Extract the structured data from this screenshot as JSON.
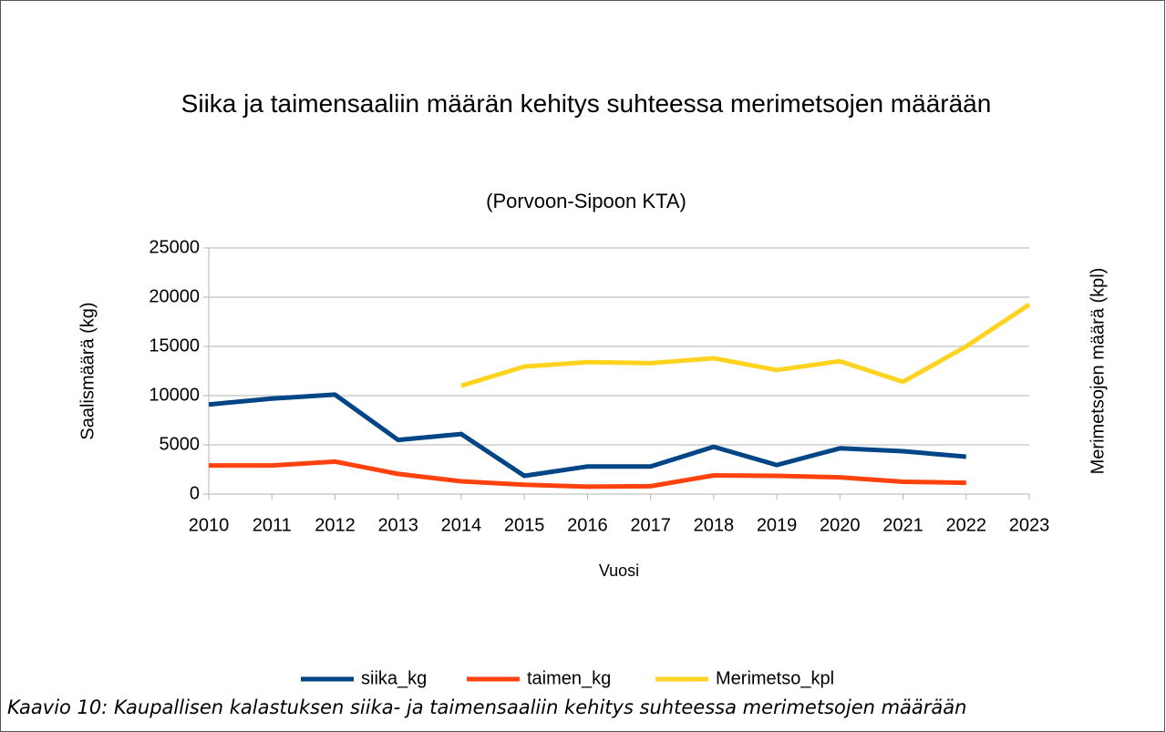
{
  "chart_data": {
    "type": "line",
    "title": "Siika ja taimensaaliin määrän kehitys suhteessa merimetsojen määrään",
    "subtitle": "(Porvoon-Sipoon KTA)",
    "xlabel": "Vuosi",
    "ylabel": "Saalismäärä (kg)",
    "y2label": "Merimetsojen määrä (kpl)",
    "categories": [
      "2010",
      "2011",
      "2012",
      "2013",
      "2014",
      "2015",
      "2016",
      "2017",
      "2018",
      "2019",
      "2020",
      "2021",
      "2022",
      "2023"
    ],
    "series": [
      {
        "name": "siika_kg",
        "color": "#004586",
        "values": [
          9100,
          9700,
          10100,
          5500,
          6100,
          1850,
          2800,
          2800,
          4800,
          2950,
          4650,
          4350,
          3800,
          null
        ]
      },
      {
        "name": "taimen_kg",
        "color": "#ff420e",
        "values": [
          2900,
          2900,
          3300,
          2050,
          1300,
          950,
          750,
          800,
          1900,
          1850,
          1700,
          1250,
          1150,
          null
        ]
      },
      {
        "name": "Merimetso_kpl",
        "color": "#ffd320",
        "values": [
          null,
          null,
          null,
          null,
          11000,
          12950,
          13400,
          13300,
          13800,
          12600,
          13500,
          11400,
          15000,
          19250
        ]
      }
    ],
    "ylim": [
      0,
      25000
    ],
    "yticks": [
      0,
      5000,
      10000,
      15000,
      20000,
      25000
    ],
    "grid": true,
    "legend": "bottom"
  },
  "caption": "Kaavio 10: Kaupallisen kalastuksen siika- ja taimensaaliin kehitys suhteessa merimetsojen määrään"
}
